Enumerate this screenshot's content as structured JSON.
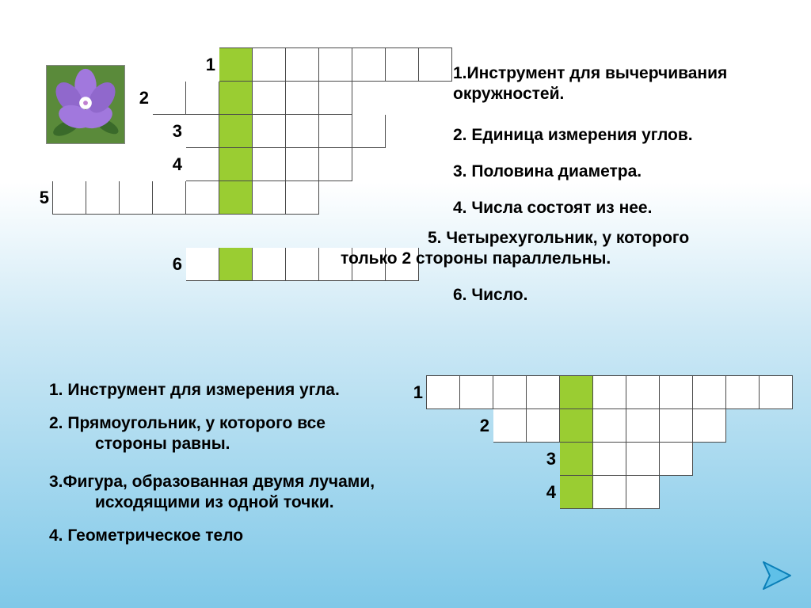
{
  "flower": {
    "petal_color": "#9a6fd8",
    "center_color": "#ffffff",
    "leaf_color": "#3a6a2a",
    "bg_color": "#5a8a3a"
  },
  "grid1": {
    "cell_size": 42,
    "cols": 12,
    "rows": 7,
    "highlight_col": 5,
    "words": [
      {
        "row": 0,
        "start": 5,
        "len": 7,
        "num": "1"
      },
      {
        "row": 1,
        "start": 3,
        "len": 6,
        "num": "2"
      },
      {
        "row": 2,
        "start": 4,
        "len": 6,
        "num": "3"
      },
      {
        "row": 3,
        "start": 4,
        "len": 5,
        "num": "4"
      },
      {
        "row": 4,
        "start": 0,
        "len": 8,
        "num": "5"
      },
      {
        "row": 6,
        "start": 4,
        "len": 7,
        "num": "6"
      }
    ],
    "fill_color": "#ffffff",
    "highlight_color": "#9acd32",
    "border_color": "#4a4a4a",
    "number_fontsize": 22
  },
  "grid2": {
    "cell_size": 42,
    "cols": 11,
    "rows": 4,
    "highlight_col": 4,
    "words": [
      {
        "row": 0,
        "start": 0,
        "len": 11,
        "num": "1"
      },
      {
        "row": 1,
        "start": 2,
        "len": 7,
        "num": "2"
      },
      {
        "row": 2,
        "start": 4,
        "len": 4,
        "num": "3"
      },
      {
        "row": 3,
        "start": 4,
        "len": 3,
        "num": "4"
      }
    ],
    "fill_color": "#ffffff",
    "highlight_color": "#9acd32",
    "border_color": "#4a4a4a",
    "number_fontsize": 22
  },
  "clues1": {
    "lines": [
      "1.Инструмент для вычерчивания",
      "окружностей.",
      "2. Единица измерения углов.",
      "3. Половина диаметра.",
      "4. Числа состоят из нее.",
      "5. Четырехугольник, у которого",
      "только 2 стороны параллельны.",
      "6. Число."
    ],
    "fontsize": 21
  },
  "clues2": {
    "lines": [
      "1. Инструмент для измерения угла.",
      "2. Прямоугольник, у которого все",
      "стороны равны.",
      "3.Фигура, образованная двумя лучами,",
      "исходящими из одной точки.",
      "4. Геометрическое тело"
    ],
    "fontsize": 21
  },
  "nav": {
    "arrow_color": "#5fc0e8",
    "arrow_stroke": "#0a7fb8",
    "size": 46
  },
  "bg_gradient": {
    "top": "#ffffff",
    "bottom": "#7fc8e8"
  }
}
